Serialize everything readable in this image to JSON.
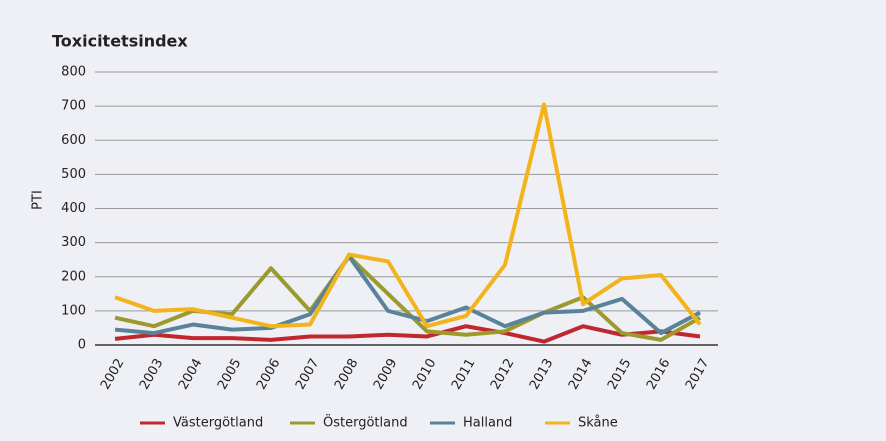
{
  "chart_data": {
    "type": "line",
    "title": "Toxicitetsindex",
    "y_label": "PTI",
    "categories": [
      "2002",
      "2003",
      "2004",
      "2005",
      "2006",
      "2007",
      "2008",
      "2009",
      "2010",
      "2011",
      "2012",
      "2013",
      "2014",
      "2015",
      "2016",
      "2017"
    ],
    "series": [
      {
        "name": "Västergötland",
        "color": "#c1272d",
        "values": [
          18,
          30,
          20,
          20,
          15,
          25,
          25,
          30,
          25,
          55,
          35,
          10,
          55,
          30,
          40,
          25
        ]
      },
      {
        "name": "Östergötland",
        "color": "#9c9a2c",
        "values": [
          80,
          55,
          100,
          90,
          225,
          100,
          260,
          150,
          40,
          30,
          40,
          95,
          140,
          35,
          15,
          80
        ]
      },
      {
        "name": "Halland",
        "color": "#5a8299",
        "values": [
          45,
          35,
          60,
          45,
          50,
          90,
          260,
          100,
          70,
          110,
          55,
          95,
          100,
          135,
          35,
          95
        ]
      },
      {
        "name": "Skåne",
        "color": "#f2b31b",
        "values": [
          140,
          100,
          105,
          80,
          55,
          60,
          265,
          245,
          55,
          85,
          235,
          705,
          120,
          195,
          205,
          60
        ]
      }
    ],
    "ylim": [
      0,
      800
    ],
    "yticks": [
      0,
      100,
      200,
      300,
      400,
      500,
      600,
      700,
      800
    ],
    "grid": true
  }
}
